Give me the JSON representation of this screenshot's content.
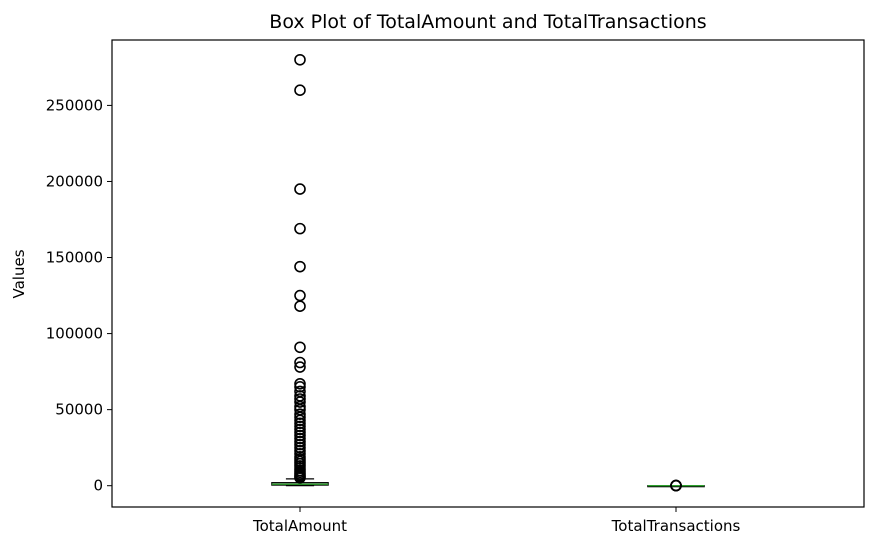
{
  "chart_data": {
    "type": "box",
    "title": "Box Plot of TotalAmount and TotalTransactions",
    "xlabel": "",
    "ylabel": "Values",
    "categories": [
      "TotalAmount",
      "TotalTransactions"
    ],
    "ylim": [
      -14000,
      293000
    ],
    "yticks": [
      0,
      50000,
      100000,
      150000,
      200000,
      250000
    ],
    "ytick_labels": [
      "0",
      "50000",
      "100000",
      "150000",
      "200000",
      "250000"
    ],
    "grid": false,
    "legend": "none",
    "boxes": [
      {
        "name": "TotalAmount",
        "whisker_low": 0,
        "q1": 400,
        "median": 1000,
        "q3": 2000,
        "whisker_high": 4500,
        "outliers": [
          280000,
          260000,
          195000,
          169000,
          144000,
          125000,
          118000,
          91000,
          81000,
          78000,
          67000,
          65000,
          62000,
          59000,
          57000,
          55000,
          52000,
          50000,
          47000,
          45000,
          43000,
          41000,
          39000,
          37000,
          35000,
          33000,
          31000,
          29000,
          27000,
          25000,
          23000,
          21000,
          19000,
          17500,
          16000,
          14500,
          13000,
          11500,
          10000,
          8800,
          7600,
          6600,
          5800,
          5200
        ]
      },
      {
        "name": "TotalTransactions",
        "whisker_low": 0,
        "q1": 2,
        "median": 5,
        "q3": 10,
        "whisker_high": 20,
        "outliers": [
          30,
          60,
          100,
          150
        ]
      }
    ],
    "colors": {
      "box": "#000000",
      "median": "#2ca02c",
      "outlier": "#000000"
    }
  }
}
